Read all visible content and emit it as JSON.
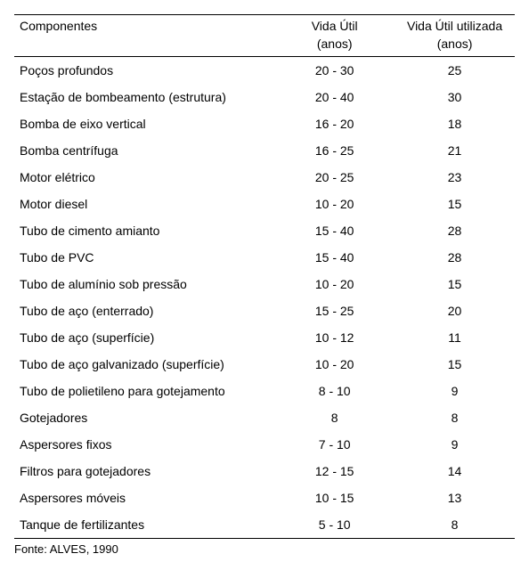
{
  "header": {
    "col1": "Componentes",
    "col2": "Vida Útil",
    "col3": "Vida Útil utilizada",
    "sub2": "(anos)",
    "sub3": "(anos)"
  },
  "rows": [
    {
      "c": "Poços profundos",
      "v1": "20 - 30",
      "v2": "25"
    },
    {
      "c": "Estação de bombeamento (estrutura)",
      "v1": "20 - 40",
      "v2": "30"
    },
    {
      "c": "Bomba de eixo vertical",
      "v1": "16 - 20",
      "v2": "18"
    },
    {
      "c": "Bomba centrífuga",
      "v1": "16 - 25",
      "v2": "21"
    },
    {
      "c": "Motor elétrico",
      "v1": "20 - 25",
      "v2": "23"
    },
    {
      "c": "Motor diesel",
      "v1": "10 - 20",
      "v2": "15"
    },
    {
      "c": "Tubo de cimento amianto",
      "v1": "15 - 40",
      "v2": "28"
    },
    {
      "c": "Tubo de PVC",
      "v1": "15 - 40",
      "v2": "28"
    },
    {
      "c": "Tubo de alumínio sob pressão",
      "v1": "10 - 20",
      "v2": "15"
    },
    {
      "c": "Tubo de aço (enterrado)",
      "v1": "15 - 25",
      "v2": "20"
    },
    {
      "c": "Tubo de aço (superfície)",
      "v1": "10 - 12",
      "v2": "11"
    },
    {
      "c": "Tubo de aço galvanizado (superfície)",
      "v1": "10 - 20",
      "v2": "15"
    },
    {
      "c": "Tubo de polietileno para gotejamento",
      "v1": "8 - 10",
      "v2": "9"
    },
    {
      "c": "Gotejadores",
      "v1": "8",
      "v2": "8"
    },
    {
      "c": "Aspersores fixos",
      "v1": "7 - 10",
      "v2": "9"
    },
    {
      "c": "Filtros para gotejadores",
      "v1": "12 - 15",
      "v2": "14"
    },
    {
      "c": "Aspersores móveis",
      "v1": "10 - 15",
      "v2": "13"
    },
    {
      "c": "Tanque de fertilizantes",
      "v1": "5 - 10",
      "v2": "8"
    }
  ],
  "source": "Fonte: ALVES, 1990"
}
